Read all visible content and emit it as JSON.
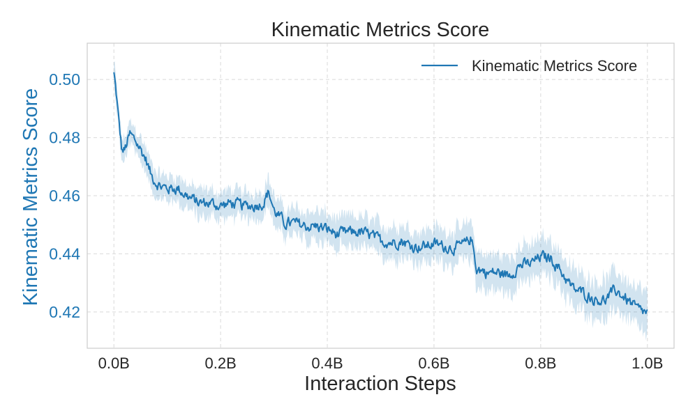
{
  "chart_data": {
    "type": "line",
    "title": "Kinematic Metrics Score",
    "xlabel": "Interaction Steps",
    "ylabel": "Kinematic Metrics Score",
    "xlim": [
      -0.05,
      1.05
    ],
    "ylim": [
      0.4075,
      0.5125
    ],
    "xticks": [
      0.0,
      0.2,
      0.4,
      0.6,
      0.8,
      1.0
    ],
    "xtick_labels": [
      "0.0B",
      "0.2B",
      "0.4B",
      "0.6B",
      "0.8B",
      "1.0B"
    ],
    "yticks": [
      0.42,
      0.44,
      0.46,
      0.48,
      0.5
    ],
    "ytick_labels": [
      "0.42",
      "0.44",
      "0.46",
      "0.48",
      "0.50"
    ],
    "grid": true,
    "legend": {
      "position": "top-right",
      "entries": [
        "Kinematic Metrics Score"
      ]
    },
    "colors": {
      "line": "#1f77b4",
      "band": "#1f77b4",
      "ylabel": "#1f77b4",
      "grid": "#d9d9d9",
      "frame": "#cccccc"
    },
    "series": [
      {
        "name": "Kinematic Metrics Score",
        "band_width_start": 0.004,
        "band_width_end": 0.007,
        "x": [
          0.0,
          0.005,
          0.01,
          0.015,
          0.02,
          0.03,
          0.04,
          0.05,
          0.06,
          0.07,
          0.08,
          0.09,
          0.1,
          0.12,
          0.14,
          0.16,
          0.18,
          0.2,
          0.22,
          0.24,
          0.26,
          0.28,
          0.29,
          0.3,
          0.32,
          0.34,
          0.36,
          0.38,
          0.4,
          0.42,
          0.44,
          0.46,
          0.48,
          0.5,
          0.52,
          0.54,
          0.56,
          0.58,
          0.6,
          0.62,
          0.64,
          0.66,
          0.67,
          0.68,
          0.7,
          0.72,
          0.74,
          0.76,
          0.78,
          0.8,
          0.82,
          0.84,
          0.86,
          0.88,
          0.9,
          0.92,
          0.94,
          0.96,
          0.98,
          1.0
        ],
        "values": [
          0.5025,
          0.494,
          0.484,
          0.4755,
          0.4755,
          0.481,
          0.479,
          0.476,
          0.4725,
          0.467,
          0.4645,
          0.463,
          0.4625,
          0.4625,
          0.4595,
          0.4575,
          0.4575,
          0.4565,
          0.4575,
          0.4565,
          0.4565,
          0.4575,
          0.4615,
          0.455,
          0.4505,
          0.4505,
          0.4495,
          0.4495,
          0.4485,
          0.4465,
          0.4475,
          0.4475,
          0.4465,
          0.4445,
          0.444,
          0.4445,
          0.4425,
          0.4425,
          0.4435,
          0.4425,
          0.442,
          0.4435,
          0.4455,
          0.435,
          0.4335,
          0.4335,
          0.4325,
          0.436,
          0.4365,
          0.439,
          0.4385,
          0.4335,
          0.428,
          0.4265,
          0.4245,
          0.424,
          0.4275,
          0.4245,
          0.421,
          0.4195
        ]
      }
    ]
  }
}
